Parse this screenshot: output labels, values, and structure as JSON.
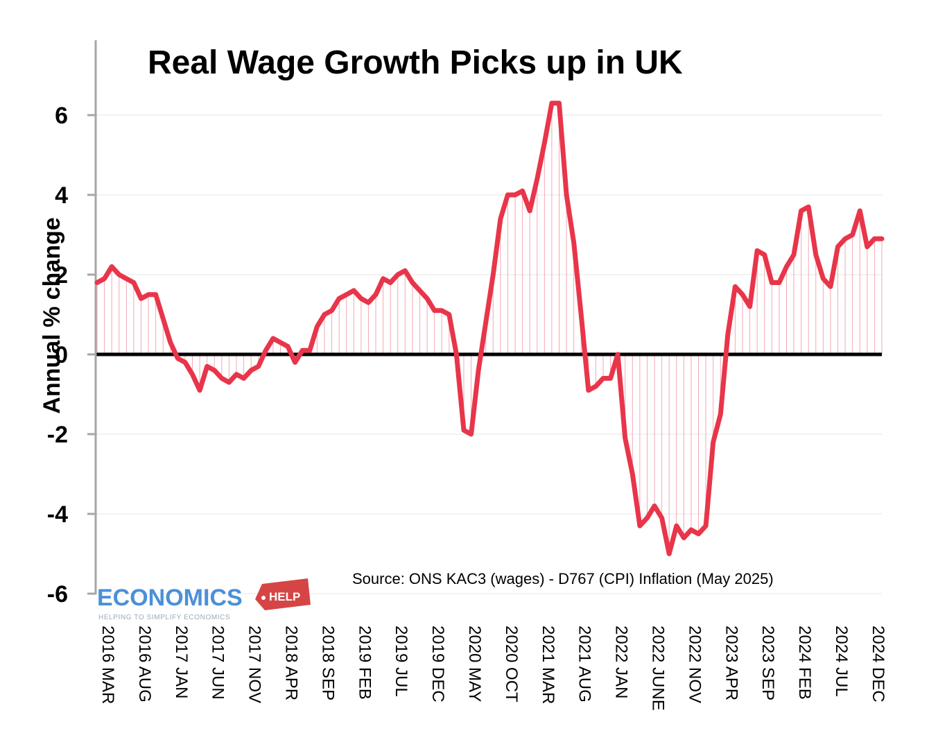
{
  "chart_data": {
    "type": "line",
    "title": "Real Wage Growth Picks up in UK",
    "ylabel": "Annual % change",
    "xlabel": "",
    "ylim": [
      -6,
      7
    ],
    "yticks": [
      6,
      4,
      2,
      0,
      -2,
      -4,
      -6
    ],
    "ytick_labels": [
      "6",
      "4",
      "2",
      "0",
      "-2",
      "-4",
      "-6"
    ],
    "x_tick_labels": [
      "2016 MAR",
      "2016 AUG",
      "2017 JAN",
      "2017 JUN",
      "2017 NOV",
      "2018 APR",
      "2018 SEP",
      "2019 FEB",
      "2019 JUL",
      "2019 DEC",
      "2020 MAY",
      "2020 OCT",
      "2021 MAR",
      "2021 AUG",
      "2022 JAN",
      "2022 JUNE",
      "2022 NOV",
      "2023 APR",
      "2023 SEP",
      "2024 FEB",
      "2024 JUL",
      "2024 DEC"
    ],
    "x_start": "2016 MAR",
    "frequency": "monthly",
    "grid": true,
    "zero_line": true,
    "series": [
      {
        "color": "#e8354a",
        "values": [
          1.8,
          1.9,
          2.2,
          2.0,
          1.9,
          1.8,
          1.4,
          1.5,
          1.5,
          0.9,
          0.3,
          -0.1,
          -0.2,
          -0.5,
          -0.9,
          -0.3,
          -0.4,
          -0.6,
          -0.7,
          -0.5,
          -0.6,
          -0.4,
          -0.3,
          0.1,
          0.4,
          0.3,
          0.2,
          -0.2,
          0.1,
          0.1,
          0.7,
          1.0,
          1.1,
          1.4,
          1.5,
          1.6,
          1.4,
          1.3,
          1.5,
          1.9,
          1.8,
          2.0,
          2.1,
          1.8,
          1.6,
          1.4,
          1.1,
          1.1,
          1.0,
          0.0,
          -1.9,
          -2.0,
          -0.4,
          0.8,
          2.0,
          3.4,
          4.0,
          4.0,
          4.1,
          3.6,
          4.4,
          5.3,
          6.3,
          6.3,
          4.0,
          2.8,
          1.0,
          -0.9,
          -0.8,
          -0.6,
          -0.6,
          0.0,
          -2.1,
          -3.0,
          -4.3,
          -4.1,
          -3.8,
          -4.1,
          -5.0,
          -4.3,
          -4.6,
          -4.4,
          -4.5,
          -4.3,
          -2.2,
          -1.5,
          0.5,
          1.7,
          1.5,
          1.2,
          2.6,
          2.5,
          1.8,
          1.8,
          2.2,
          2.5,
          3.6,
          3.7,
          2.5,
          1.9,
          1.7,
          2.7,
          2.9,
          3.0,
          3.6,
          2.7,
          2.9,
          2.9
        ]
      }
    ],
    "annotation": "Source: ONS KAC3 (wages) - D767 (CPI) Inflation (May 2025)"
  },
  "logo": {
    "name": "ECONOMICS",
    "badge": "HELP",
    "tagline": "HELPING TO SIMPLIFY ECONOMICS"
  },
  "colors": {
    "line": "#e8354a",
    "stems": "#f2a8b2",
    "zero_line": "#000000",
    "grid": "#e6e6e6",
    "axis": "#a6a6a6",
    "logo_blue": "#4a90d9",
    "logo_red": "#d64545"
  }
}
